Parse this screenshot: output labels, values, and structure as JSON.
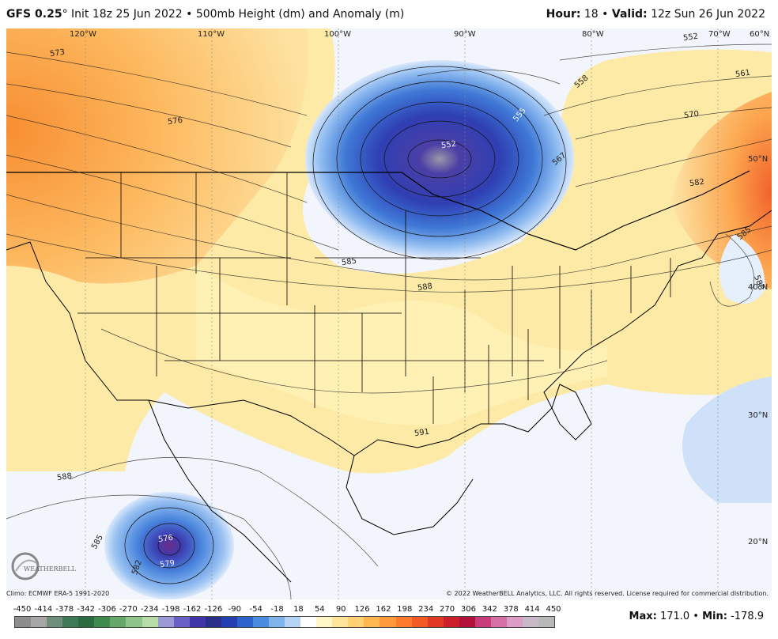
{
  "header": {
    "model": "GFS 0.25",
    "degree": "°",
    "init": " Init 18z 25 Jun 2022 • 500mb Height (dm) and Anomaly (m)",
    "hour_label": "Hour:",
    "hour_value": " 18 • ",
    "valid_label": "Valid:",
    "valid_value": " 12z Sun 26 Jun 2022"
  },
  "longitudes": [
    "120°W",
    "110°W",
    "100°W",
    "90°W",
    "80°W",
    "70°W"
  ],
  "latitudes": [
    "60°N",
    "50°N",
    "40°N",
    "30°N",
    "20°N"
  ],
  "contours": [
    "573",
    "576",
    "552",
    "555",
    "558",
    "561",
    "567",
    "570",
    "582",
    "585",
    "588",
    "591",
    "588",
    "585",
    "576",
    "579",
    "582",
    "552",
    "585",
    "588"
  ],
  "footer": {
    "climo": "Climo: ECMWF ERA-5 1991-2020",
    "copyright": "© 2022 WeatherBELL Analytics, LLC. All rights reserved. License required for commercial distribution."
  },
  "colorbar": {
    "ticks": [
      "-450",
      "-414",
      "-378",
      "-342",
      "-306",
      "-270",
      "-234",
      "-198",
      "-162",
      "-126",
      "-90",
      "-54",
      "-18",
      "18",
      "54",
      "90",
      "126",
      "162",
      "198",
      "234",
      "270",
      "306",
      "342",
      "378",
      "414",
      "450"
    ],
    "colors": [
      "#8d8d8d",
      "#a7a7a7",
      "#6f8f7a",
      "#3e7a55",
      "#2a6b3f",
      "#3f8b4f",
      "#66a86a",
      "#8fc58a",
      "#b7dca8",
      "#9c9ad6",
      "#6a5fc4",
      "#3f34a8",
      "#2a2f8a",
      "#233fb0",
      "#2d63cc",
      "#4a8ce0",
      "#7fb3ec",
      "#b5d3f5",
      "#ffffff",
      "#fff6c8",
      "#ffe59a",
      "#ffd173",
      "#ffb64f",
      "#ff9a3a",
      "#ff7a2e",
      "#f15a24",
      "#e03a24",
      "#cc1f2c",
      "#b3103a",
      "#c83c7a",
      "#d56fa6",
      "#dd9cc6",
      "#c7b9c7",
      "#b8b8b8"
    ]
  },
  "stats": {
    "max_label": "Max:",
    "max_value": " 171.0 • ",
    "min_label": "Min:",
    "min_value": " -178.9"
  },
  "logo": {
    "text": "WEATHERBELL"
  }
}
